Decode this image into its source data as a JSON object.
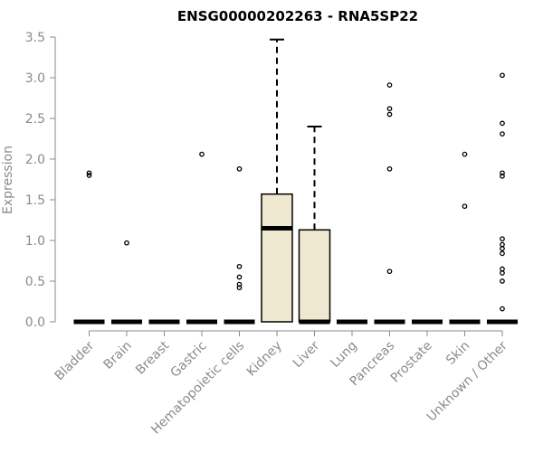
{
  "chart_data": {
    "type": "boxplot",
    "title": "ENSG00000202263 - RNA5SP22",
    "ylabel": "Expression",
    "xlabel": "",
    "ylim": [
      0,
      3.5
    ],
    "yticks": [
      "0.0",
      "0.5",
      "1.0",
      "1.5",
      "2.0",
      "2.5",
      "3.0",
      "3.5"
    ],
    "box_color": "#efe8d0",
    "categories": [
      "Bladder",
      "Brain",
      "Breast",
      "Gastric",
      "Hematopoietic cells",
      "Kidney",
      "Liver",
      "Lung",
      "Pancreas",
      "Prostate",
      "Skin",
      "Unknown / Other"
    ],
    "boxes": [
      {
        "name": "Bladder",
        "min": 0,
        "q1": 0,
        "median": 0,
        "q3": 0,
        "max": 0,
        "outliers": [
          1.8,
          1.83
        ]
      },
      {
        "name": "Brain",
        "min": 0,
        "q1": 0,
        "median": 0,
        "q3": 0,
        "max": 0,
        "outliers": [
          0.97
        ]
      },
      {
        "name": "Breast",
        "min": 0,
        "q1": 0,
        "median": 0,
        "q3": 0,
        "max": 0,
        "outliers": []
      },
      {
        "name": "Gastric",
        "min": 0,
        "q1": 0,
        "median": 0,
        "q3": 0,
        "max": 0,
        "outliers": [
          2.06
        ]
      },
      {
        "name": "Hematopoietic cells",
        "min": 0,
        "q1": 0,
        "median": 0,
        "q3": 0,
        "max": 0,
        "outliers": [
          1.88,
          0.68,
          0.55,
          0.46,
          0.42
        ]
      },
      {
        "name": "Kidney",
        "min": 0,
        "q1": 0,
        "median": 1.15,
        "q3": 1.57,
        "max": 3.47,
        "outliers": []
      },
      {
        "name": "Liver",
        "min": 0,
        "q1": 0,
        "median": 0,
        "q3": 1.13,
        "max": 2.4,
        "outliers": []
      },
      {
        "name": "Lung",
        "min": 0,
        "q1": 0,
        "median": 0,
        "q3": 0,
        "max": 0,
        "outliers": []
      },
      {
        "name": "Pancreas",
        "min": 0,
        "q1": 0,
        "median": 0,
        "q3": 0,
        "max": 0,
        "outliers": [
          2.91,
          2.62,
          2.55,
          1.88,
          0.62
        ]
      },
      {
        "name": "Prostate",
        "min": 0,
        "q1": 0,
        "median": 0,
        "q3": 0,
        "max": 0,
        "outliers": []
      },
      {
        "name": "Skin",
        "min": 0,
        "q1": 0,
        "median": 0,
        "q3": 0,
        "max": 0,
        "outliers": [
          2.06,
          1.42
        ]
      },
      {
        "name": "Unknown / Other",
        "min": 0,
        "q1": 0,
        "median": 0,
        "q3": 0,
        "max": 0,
        "outliers": [
          3.03,
          2.44,
          2.31,
          1.83,
          1.79,
          1.02,
          0.95,
          0.9,
          0.84,
          0.65,
          0.6,
          0.5,
          0.16
        ]
      }
    ]
  }
}
